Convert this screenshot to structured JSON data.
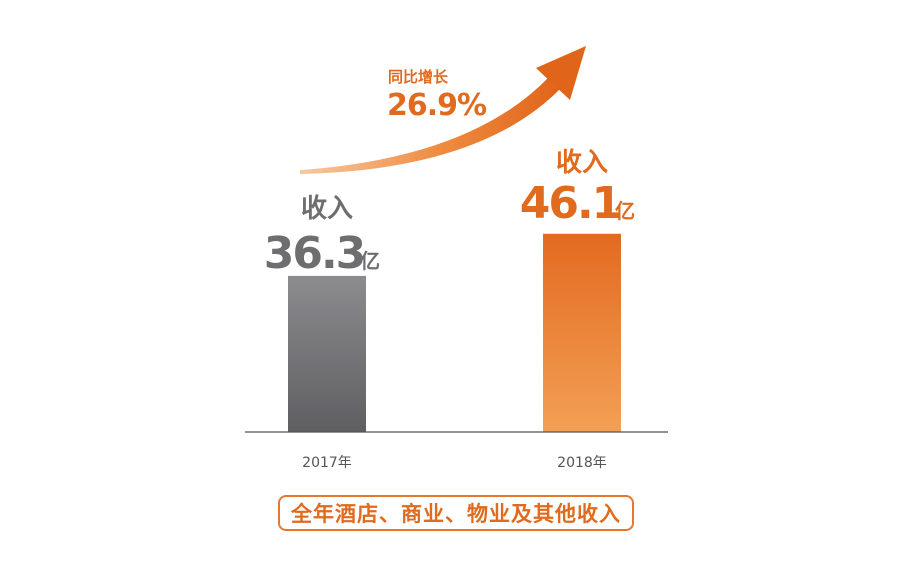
{
  "chart_data": {
    "type": "bar",
    "categories": [
      "2017年",
      "2018年"
    ],
    "values": [
      36.3,
      46.1
    ],
    "value_prefix": "收入",
    "unit": "亿",
    "colors": [
      "#717073",
      "#e8772e"
    ],
    "growth": {
      "label": "同比增长",
      "value": "26.9%"
    },
    "caption": "全年酒店、商业、物业及其他收入",
    "ylim": [
      0,
      50
    ]
  }
}
